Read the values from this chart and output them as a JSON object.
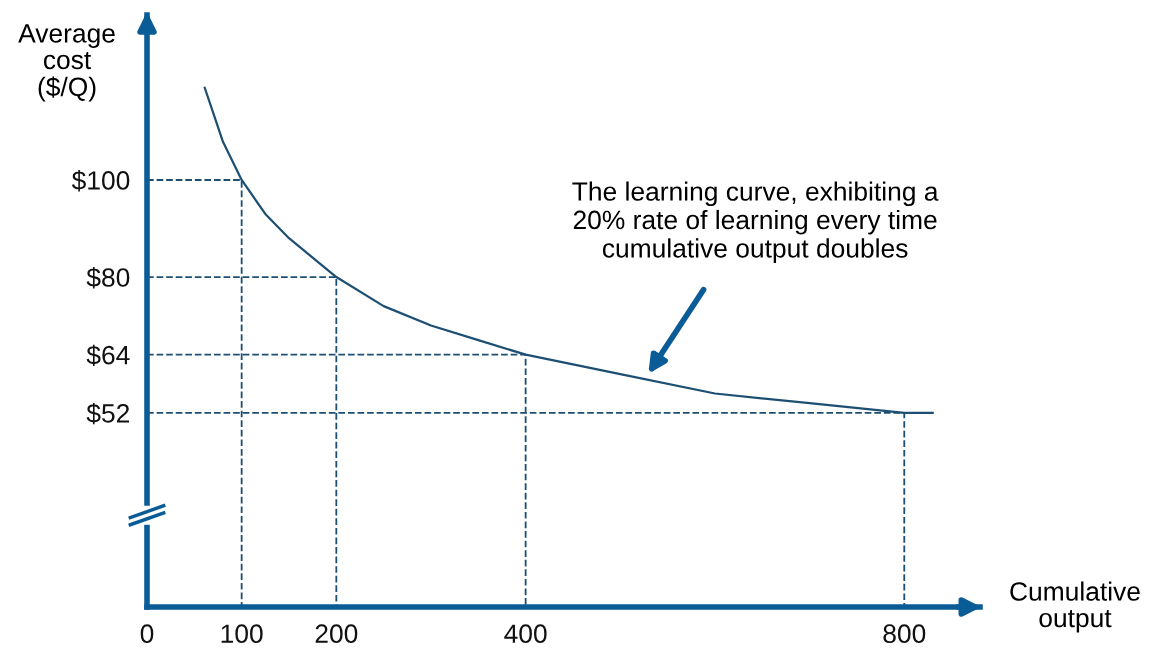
{
  "chart_data": {
    "type": "line",
    "xlabel": "Cumulative\noutput",
    "ylabel": "Average\ncost\n($/Q)",
    "xlim": [
      0,
      880
    ],
    "ylim": [
      12,
      134
    ],
    "xticks": [
      0,
      100,
      200,
      400,
      800
    ],
    "yticks": [
      {
        "value": 100,
        "label": "$100"
      },
      {
        "value": 80,
        "label": "$80"
      },
      {
        "value": 64,
        "label": "$64"
      },
      {
        "value": 52,
        "label": "$52"
      }
    ],
    "grid": false,
    "marker": "none",
    "series": [
      {
        "color": "#1d4f73",
        "x": [
          61,
          80,
          100,
          125,
          150,
          175,
          200,
          250,
          300,
          350,
          400,
          450,
          500,
          600,
          700,
          800,
          830
        ],
        "values": [
          119,
          108,
          100,
          93,
          88,
          84,
          80,
          74,
          70,
          67,
          64,
          62,
          60,
          56,
          54,
          52,
          52
        ],
        "line_style": "solid"
      },
      {
        "color": "#1d4f73",
        "x": [
          0,
          100,
          100
        ],
        "values": [
          100,
          100,
          12
        ],
        "line_style": "dashed"
      },
      {
        "color": "#1d4f73",
        "x": [
          0,
          200,
          200
        ],
        "values": [
          80,
          80,
          12
        ],
        "line_style": "dashed"
      },
      {
        "color": "#1d4f73",
        "x": [
          0,
          400,
          400
        ],
        "values": [
          64,
          64,
          12
        ],
        "line_style": "dashed"
      },
      {
        "color": "#1d4f73",
        "x": [
          0,
          800,
          800
        ],
        "values": [
          52,
          52,
          12
        ],
        "line_style": "dashed"
      }
    ],
    "annotations": [
      "The learning curve, exhibiting a\n20% rate of learning every time\ncumulative output doubles"
    ]
  }
}
